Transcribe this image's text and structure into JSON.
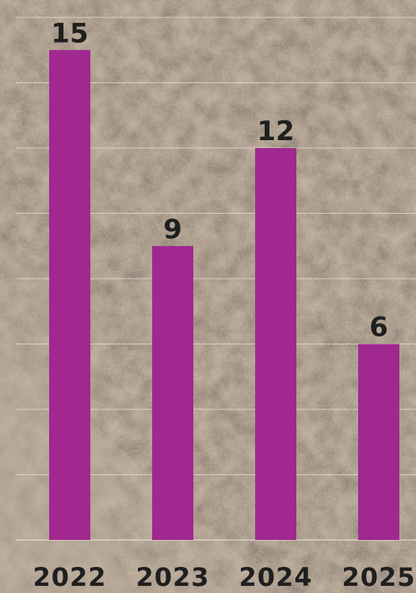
{
  "chart_data": {
    "type": "bar",
    "categories": [
      "2022",
      "2023",
      "2024",
      "2025"
    ],
    "values": [
      15,
      9,
      12,
      6
    ],
    "ylim": [
      0,
      16
    ],
    "grid": true,
    "legend": "none",
    "colors": {
      "bar": "#a0288f",
      "text": "#1f1f1f",
      "grid": "#e6e3de"
    }
  }
}
